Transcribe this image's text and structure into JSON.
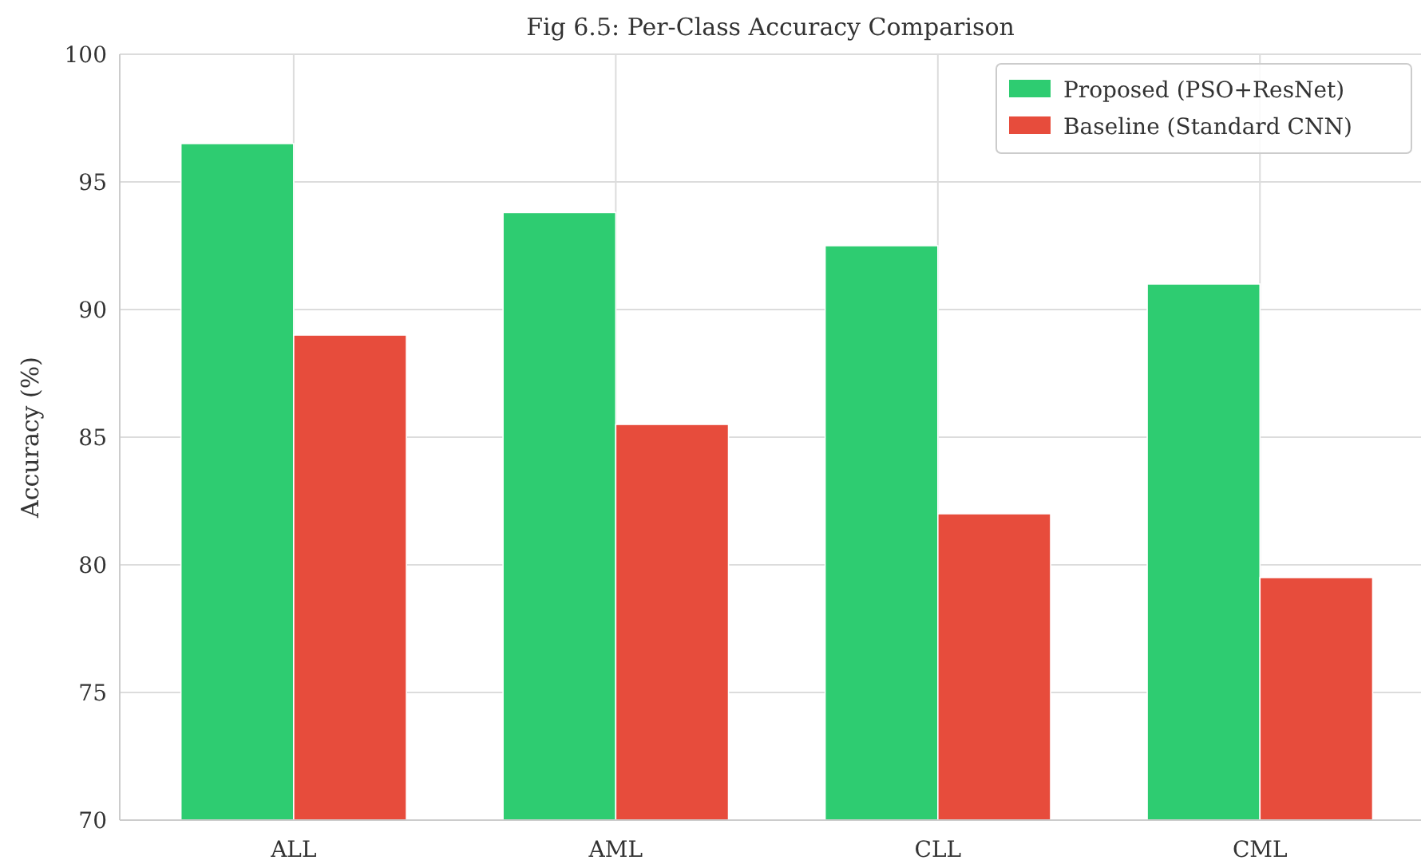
{
  "chart_data": {
    "type": "bar",
    "title": "Fig 6.5: Per-Class Accuracy Comparison",
    "ylabel": "Accuracy (%)",
    "categories": [
      "ALL",
      "AML",
      "CLL",
      "CML"
    ],
    "series": [
      {
        "name": "Proposed (PSO+ResNet)",
        "color": "#2ecc71",
        "values": [
          96.5,
          93.8,
          92.5,
          91
        ]
      },
      {
        "name": "Baseline (Standard CNN)",
        "color": "#e74c3c",
        "values": [
          89,
          85.5,
          82,
          79.5
        ]
      }
    ],
    "ylim": [
      70,
      100
    ],
    "yticks": [
      70,
      75,
      80,
      85,
      90,
      95,
      100
    ],
    "grid": true,
    "legend": "top right"
  }
}
